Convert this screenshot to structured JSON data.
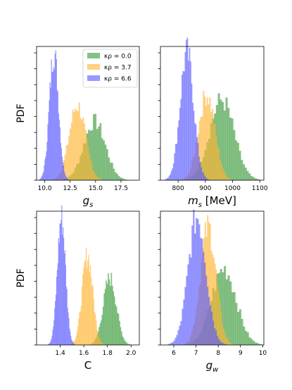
{
  "figure": {
    "background": "#ffffff"
  },
  "legend": {
    "panel": 0,
    "placement": "top-right",
    "entries": [
      {
        "label": "κρ = 0.0",
        "color": "#3a9a3a"
      },
      {
        "label": "κρ = 3.7",
        "color": "#ffb533"
      },
      {
        "label": "κρ = 6.6",
        "color": "#5b5bff"
      }
    ]
  },
  "chart_data": [
    {
      "type": "histogram",
      "xlabel": "g_s",
      "ylabel": "PDF",
      "xlim": [
        9.2,
        19.3
      ],
      "xticks": [
        10.0,
        12.5,
        15.0,
        17.5
      ],
      "xtick_labels": [
        "10.0",
        "12.5",
        "15.0",
        "17.5"
      ],
      "yticks_count": 9,
      "series": [
        {
          "color": "#3a9a3a",
          "mean": 14.9,
          "sd": 1.05,
          "peak": 0.44
        },
        {
          "color": "#ffb533",
          "mean": 13.2,
          "sd": 0.8,
          "peak": 0.56
        },
        {
          "color": "#5b5bff",
          "mean": 10.9,
          "sd": 0.45,
          "peak": 0.96
        }
      ]
    },
    {
      "type": "histogram",
      "xlabel": "m_s [MeV]",
      "ylabel": "",
      "xlim": [
        735,
        1115
      ],
      "xticks": [
        800,
        900,
        1000,
        1100
      ],
      "xtick_labels": [
        "800",
        "900",
        "1000",
        "1100"
      ],
      "yticks_count": 9,
      "series": [
        {
          "color": "#3a9a3a",
          "mean": 960,
          "sd": 45,
          "peak": 0.6
        },
        {
          "color": "#ffb533",
          "mean": 905,
          "sd": 30,
          "peak": 0.64
        },
        {
          "color": "#5b5bff",
          "mean": 832,
          "sd": 25,
          "peak": 0.95
        }
      ]
    },
    {
      "type": "histogram",
      "xlabel": "C",
      "ylabel": "PDF",
      "xlim": [
        1.2,
        2.07
      ],
      "xticks": [
        1.4,
        1.6,
        1.8,
        2.0
      ],
      "xtick_labels": [
        "1.4",
        "1.6",
        "1.8",
        "2.0"
      ],
      "yticks_count": 9,
      "series": [
        {
          "color": "#3a9a3a",
          "mean": 1.82,
          "sd": 0.055,
          "peak": 0.5
        },
        {
          "color": "#ffb533",
          "mean": 1.63,
          "sd": 0.045,
          "peak": 0.67
        },
        {
          "color": "#5b5bff",
          "mean": 1.41,
          "sd": 0.035,
          "peak": 0.95
        }
      ]
    },
    {
      "type": "histogram",
      "xlabel": "g_w",
      "ylabel": "",
      "xlim": [
        5.4,
        10.05
      ],
      "xticks": [
        6,
        7,
        8,
        9,
        10
      ],
      "xtick_labels": [
        "6",
        "7",
        "8",
        "9",
        "10"
      ],
      "yticks_count": 9,
      "series": [
        {
          "color": "#3a9a3a",
          "mean": 8.25,
          "sd": 0.55,
          "peak": 0.57
        },
        {
          "color": "#ffb533",
          "mean": 7.55,
          "sd": 0.35,
          "peak": 0.88
        },
        {
          "color": "#5b5bff",
          "mean": 7.05,
          "sd": 0.4,
          "peak": 0.96
        }
      ]
    }
  ]
}
